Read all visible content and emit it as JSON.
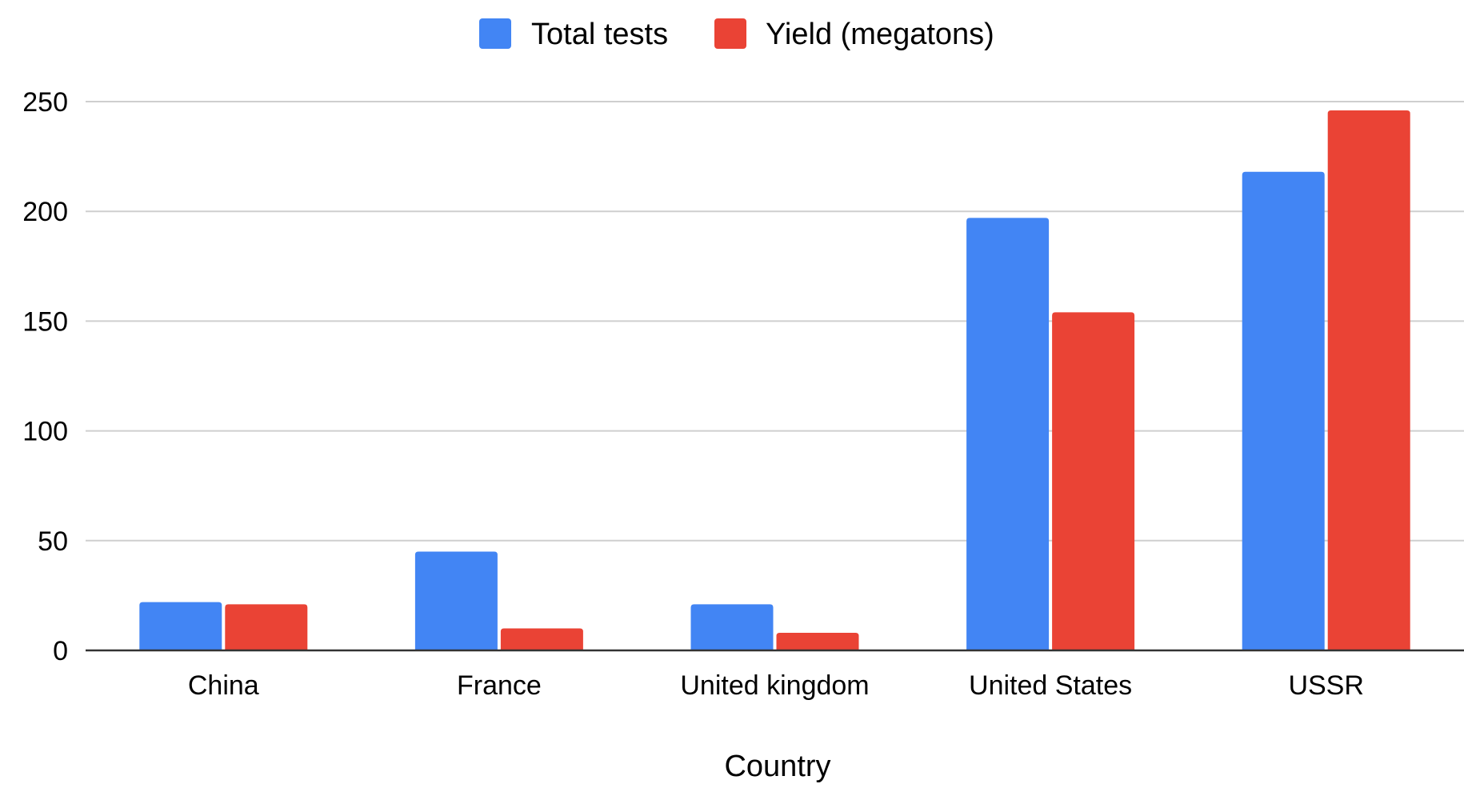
{
  "chart_data": {
    "type": "bar",
    "title": "",
    "xlabel": "Country",
    "ylabel": "",
    "categories": [
      "China",
      "France",
      "United kingdom",
      "United States",
      "USSR"
    ],
    "series": [
      {
        "name": "Total tests",
        "color": "#4285f4",
        "values": [
          22,
          45,
          21,
          197,
          218
        ]
      },
      {
        "name": "Yield (megatons)",
        "color": "#ea4335",
        "values": [
          21,
          10,
          8,
          154,
          246
        ]
      }
    ],
    "ylim": [
      0,
      250
    ],
    "yticks": [
      0,
      50,
      100,
      150,
      200,
      250
    ],
    "grid": true,
    "legend": "top-center"
  }
}
